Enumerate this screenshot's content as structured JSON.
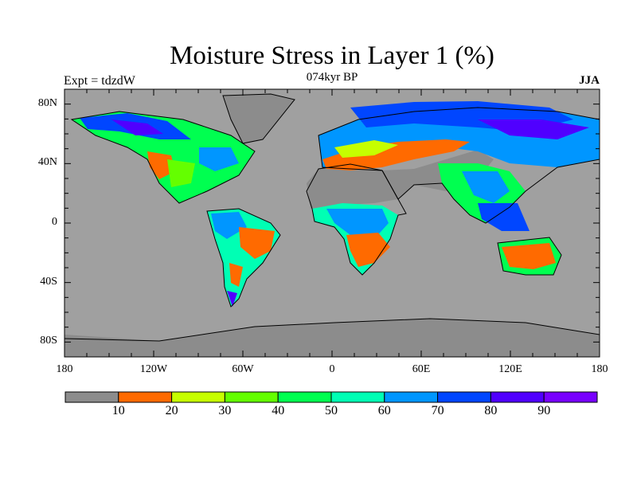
{
  "title": "Moisture Stress in Layer 1 (%)",
  "experiment": "Expt = tdzdW",
  "subtitle": "074kyr BP",
  "season": "JJA",
  "map": {
    "lat_labels": [
      {
        "label": "80N",
        "lat": 80
      },
      {
        "label": "40N",
        "lat": 40
      },
      {
        "label": "0",
        "lat": 0
      },
      {
        "label": "40S",
        "lat": -40
      },
      {
        "label": "80S",
        "lat": -80
      }
    ],
    "lon_labels": [
      {
        "label": "180",
        "lon": -180
      },
      {
        "label": "120W",
        "lon": -120
      },
      {
        "label": "60W",
        "lon": -60
      },
      {
        "label": "0",
        "lon": 0
      },
      {
        "label": "60E",
        "lon": 60
      },
      {
        "label": "120E",
        "lon": 120
      },
      {
        "label": "180",
        "lon": 180
      }
    ],
    "ocean_color": "#a0a0a0"
  },
  "colorbar": {
    "levels": [
      "10",
      "20",
      "30",
      "40",
      "50",
      "60",
      "70",
      "80",
      "90"
    ],
    "colors": [
      "#8c8c8c",
      "#ff6a00",
      "#c6ff00",
      "#64ff00",
      "#00ff50",
      "#00ffb4",
      "#0096ff",
      "#0046ff",
      "#5000ff",
      "#7800ff"
    ]
  }
}
